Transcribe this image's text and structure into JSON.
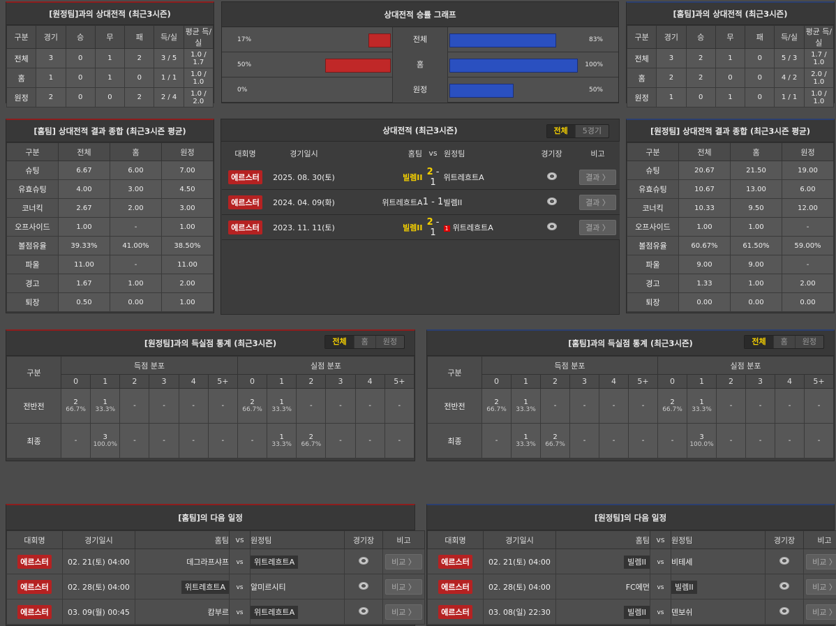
{
  "h2h_away": {
    "title": "[원정팀]과의 상대전적 (최근3시즌)",
    "headers": [
      "구분",
      "경기",
      "승",
      "무",
      "패",
      "득/실",
      "평균 득/실"
    ],
    "rows": [
      [
        "전체",
        "3",
        "0",
        "1",
        "2",
        "3 / 5",
        "1.0 / 1.7"
      ],
      [
        "홈",
        "1",
        "0",
        "1",
        "0",
        "1 / 1",
        "1.0 / 1.0"
      ],
      [
        "원정",
        "2",
        "0",
        "0",
        "2",
        "2 / 4",
        "1.0 / 2.0"
      ]
    ]
  },
  "graph": {
    "title": "상대전적 승률 그래프",
    "rows": [
      {
        "label": "전체",
        "left": "17%",
        "left_value": 17,
        "right": "83%",
        "right_value": 83
      },
      {
        "label": "홈",
        "left": "50%",
        "left_value": 50,
        "right": "100%",
        "right_value": 100
      },
      {
        "label": "원정",
        "left": "0%",
        "left_value": 0,
        "right": "50%",
        "right_value": 50
      }
    ],
    "left_color": "#c02828",
    "right_color": "#2a50c0"
  },
  "h2h_home": {
    "title": "[홈팀]과의 상대전적 (최근3시즌)",
    "headers": [
      "구분",
      "경기",
      "승",
      "무",
      "패",
      "득/실",
      "평균 득/실"
    ],
    "rows": [
      [
        "전체",
        "3",
        "2",
        "1",
        "0",
        "5 / 3",
        "1.7 / 1.0"
      ],
      [
        "홈",
        "2",
        "2",
        "0",
        "0",
        "4 / 2",
        "2.0 / 1.0"
      ],
      [
        "원정",
        "1",
        "0",
        "1",
        "0",
        "1 / 1",
        "1.0 / 1.0"
      ]
    ]
  },
  "sum_home": {
    "title": "[홈팀] 상대전적 결과 종합 (최근3시즌 평균)",
    "headers": [
      "구분",
      "전체",
      "홈",
      "원정"
    ],
    "rows": [
      [
        "슈팅",
        "6.67",
        "6.00",
        "7.00"
      ],
      [
        "유효슈팅",
        "4.00",
        "3.00",
        "4.50"
      ],
      [
        "코너킥",
        "2.67",
        "2.00",
        "3.00"
      ],
      [
        "오프사이드",
        "1.00",
        "-",
        "1.00"
      ],
      [
        "볼점유율",
        "39.33%",
        "41.00%",
        "38.50%"
      ],
      [
        "파울",
        "11.00",
        "-",
        "11.00"
      ],
      [
        "경고",
        "1.67",
        "1.00",
        "2.00"
      ],
      [
        "퇴장",
        "0.50",
        "0.00",
        "1.00"
      ]
    ]
  },
  "sum_away": {
    "title": "[원정팀] 상대전적 결과 종합 (최근3시즌 평균)",
    "headers": [
      "구분",
      "전체",
      "홈",
      "원정"
    ],
    "rows": [
      [
        "슈팅",
        "20.67",
        "21.50",
        "19.00"
      ],
      [
        "유효슈팅",
        "10.67",
        "13.00",
        "6.00"
      ],
      [
        "코너킥",
        "10.33",
        "9.50",
        "12.00"
      ],
      [
        "오프사이드",
        "1.00",
        "1.00",
        "-"
      ],
      [
        "볼점유율",
        "60.67%",
        "61.50%",
        "59.00%"
      ],
      [
        "파울",
        "9.00",
        "9.00",
        "-"
      ],
      [
        "경고",
        "1.33",
        "1.00",
        "2.00"
      ],
      [
        "퇴장",
        "0.00",
        "0.00",
        "0.00"
      ]
    ]
  },
  "matches": {
    "title": "상대전적 (최근3시즌)",
    "toggle": [
      "전체",
      "5경기"
    ],
    "headers": [
      "대회명",
      "경기일시",
      "홈팀",
      "vs",
      "원정팀",
      "경기장",
      "비고"
    ],
    "rows": [
      {
        "league": "에르스터",
        "date": "2025. 08. 30(토)",
        "home": "빌렘II",
        "hs": "2",
        "as": "1",
        "away": "위트레흐트A",
        "winner": "home",
        "card": "",
        "btn": "결과 〉"
      },
      {
        "league": "에르스터",
        "date": "2024. 04. 09(화)",
        "home": "위트레흐트A",
        "hs": "1",
        "as": "1",
        "away": "빌렘II",
        "winner": "",
        "card": "",
        "btn": "결과 〉"
      },
      {
        "league": "에르스터",
        "date": "2023. 11. 11(토)",
        "home": "빌렘II",
        "hs": "2",
        "as": "1",
        "away": "위트레흐트A",
        "winner": "home",
        "card": "1",
        "btn": "결과 〉"
      }
    ]
  },
  "goals_away": {
    "title": "[원정팀]과의 득실점 통계 (최근3시즌)",
    "toggle": [
      "전체",
      "홈",
      "원정"
    ],
    "label": "구분",
    "scored": "득점 분포",
    "conceded": "실점 분포",
    "cols": [
      "0",
      "1",
      "2",
      "3",
      "4",
      "5+",
      "0",
      "1",
      "2",
      "3",
      "4",
      "5+"
    ],
    "rows": [
      {
        "label": "전반전",
        "cells": [
          [
            "2",
            "66.7%"
          ],
          [
            "1",
            "33.3%"
          ],
          [
            "-",
            ""
          ],
          [
            "-",
            ""
          ],
          [
            "-",
            ""
          ],
          [
            "-",
            ""
          ],
          [
            "2",
            "66.7%"
          ],
          [
            "1",
            "33.3%"
          ],
          [
            "-",
            ""
          ],
          [
            "-",
            ""
          ],
          [
            "-",
            ""
          ],
          [
            "-",
            ""
          ]
        ]
      },
      {
        "label": "최종",
        "cells": [
          [
            "-",
            ""
          ],
          [
            "3",
            "100.0%"
          ],
          [
            "-",
            ""
          ],
          [
            "-",
            ""
          ],
          [
            "-",
            ""
          ],
          [
            "-",
            ""
          ],
          [
            "-",
            ""
          ],
          [
            "1",
            "33.3%"
          ],
          [
            "2",
            "66.7%"
          ],
          [
            "-",
            ""
          ],
          [
            "-",
            ""
          ],
          [
            "-",
            ""
          ]
        ]
      }
    ]
  },
  "goals_home": {
    "title": "[홈팀]과의 득실점 통계 (최근3시즌)",
    "toggle": [
      "전체",
      "홈",
      "원정"
    ],
    "label": "구분",
    "scored": "득점 분포",
    "conceded": "실점 분포",
    "cols": [
      "0",
      "1",
      "2",
      "3",
      "4",
      "5+",
      "0",
      "1",
      "2",
      "3",
      "4",
      "5+"
    ],
    "rows": [
      {
        "label": "전반전",
        "cells": [
          [
            "2",
            "66.7%"
          ],
          [
            "1",
            "33.3%"
          ],
          [
            "-",
            ""
          ],
          [
            "-",
            ""
          ],
          [
            "-",
            ""
          ],
          [
            "-",
            ""
          ],
          [
            "2",
            "66.7%"
          ],
          [
            "1",
            "33.3%"
          ],
          [
            "-",
            ""
          ],
          [
            "-",
            ""
          ],
          [
            "-",
            ""
          ],
          [
            "-",
            ""
          ]
        ]
      },
      {
        "label": "최종",
        "cells": [
          [
            "-",
            ""
          ],
          [
            "1",
            "33.3%"
          ],
          [
            "2",
            "66.7%"
          ],
          [
            "-",
            ""
          ],
          [
            "-",
            ""
          ],
          [
            "-",
            ""
          ],
          [
            "-",
            ""
          ],
          [
            "3",
            "100.0%"
          ],
          [
            "-",
            ""
          ],
          [
            "-",
            ""
          ],
          [
            "-",
            ""
          ],
          [
            "-",
            ""
          ]
        ]
      }
    ]
  },
  "next_home": {
    "title": "[홈팀]의 다음 일정",
    "headers": [
      "대회명",
      "경기일시",
      "홈팀",
      "vs",
      "원정팀",
      "경기장",
      "비고"
    ],
    "rows": [
      {
        "league": "에르스터",
        "date": "02. 21(토) 04:00",
        "home": "데그라프샤프",
        "away": "위트레흐트A",
        "hl": "away",
        "btn": "비교 〉"
      },
      {
        "league": "에르스터",
        "date": "02. 28(토) 04:00",
        "home": "위트레흐트A",
        "away": "알미르시티",
        "hl": "home",
        "btn": "비교 〉"
      },
      {
        "league": "에르스터",
        "date": "03. 09(월) 00:45",
        "home": "캄부르",
        "away": "위트레흐트A",
        "hl": "away",
        "btn": "비교 〉"
      }
    ]
  },
  "next_away": {
    "title": "[원정팀]의 다음 일정",
    "headers": [
      "대회명",
      "경기일시",
      "홈팀",
      "vs",
      "원정팀",
      "경기장",
      "비고"
    ],
    "rows": [
      {
        "league": "에르스터",
        "date": "02. 21(토) 04:00",
        "home": "빌렘II",
        "away": "비테세",
        "hl": "home",
        "btn": "비교 〉"
      },
      {
        "league": "에르스터",
        "date": "02. 28(토) 04:00",
        "home": "FC에먼",
        "away": "빌렘II",
        "hl": "away",
        "btn": "비교 〉"
      },
      {
        "league": "에르스터",
        "date": "03. 08(일) 22:30",
        "home": "빌렘II",
        "away": "덴보쉬",
        "hl": "home",
        "btn": "비교 〉"
      }
    ]
  }
}
